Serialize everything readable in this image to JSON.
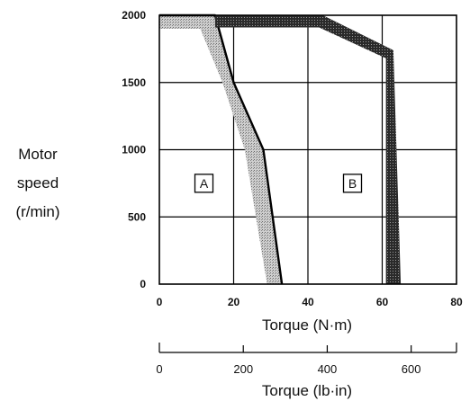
{
  "chart_data": {
    "type": "area",
    "x_axis": {
      "label": "Torque (N·m)",
      "range": [
        0,
        80
      ],
      "ticks": [
        "0",
        "20",
        "40",
        "60",
        "80"
      ]
    },
    "x2_axis": {
      "label": "Torque (lb·in)",
      "range": [
        0,
        708
      ],
      "ticks": [
        "0",
        "200",
        "400",
        "600"
      ]
    },
    "y_axis": {
      "label_lines": [
        "Motor",
        "speed",
        "(r/min)"
      ],
      "range": [
        0,
        2000
      ],
      "ticks": [
        "0",
        "500",
        "1000",
        "1500",
        "2000"
      ]
    },
    "grid": true,
    "regions": [
      {
        "label": "A",
        "label_pos": {
          "x": 12,
          "y": 750
        },
        "band_inner": [
          [
            0,
            1900
          ],
          [
            11,
            1900
          ],
          [
            17,
            1500
          ],
          [
            23,
            1000
          ],
          [
            29,
            0
          ]
        ],
        "band_outer": [
          [
            0,
            2000
          ],
          [
            15,
            2000
          ],
          [
            20,
            1500
          ],
          [
            28,
            1000
          ],
          [
            33,
            0
          ]
        ],
        "color": "#bdbdbd",
        "border_color": "#000000"
      },
      {
        "label": "B",
        "label_pos": {
          "x": 52,
          "y": 750
        },
        "band_inner": [
          [
            15,
            1910
          ],
          [
            43,
            1910
          ],
          [
            61,
            1680
          ],
          [
            61,
            0
          ]
        ],
        "band_outer": [
          [
            15,
            2000
          ],
          [
            44,
            2000
          ],
          [
            63,
            1740
          ],
          [
            65,
            0
          ]
        ],
        "color": "#3c3c3c"
      }
    ]
  }
}
